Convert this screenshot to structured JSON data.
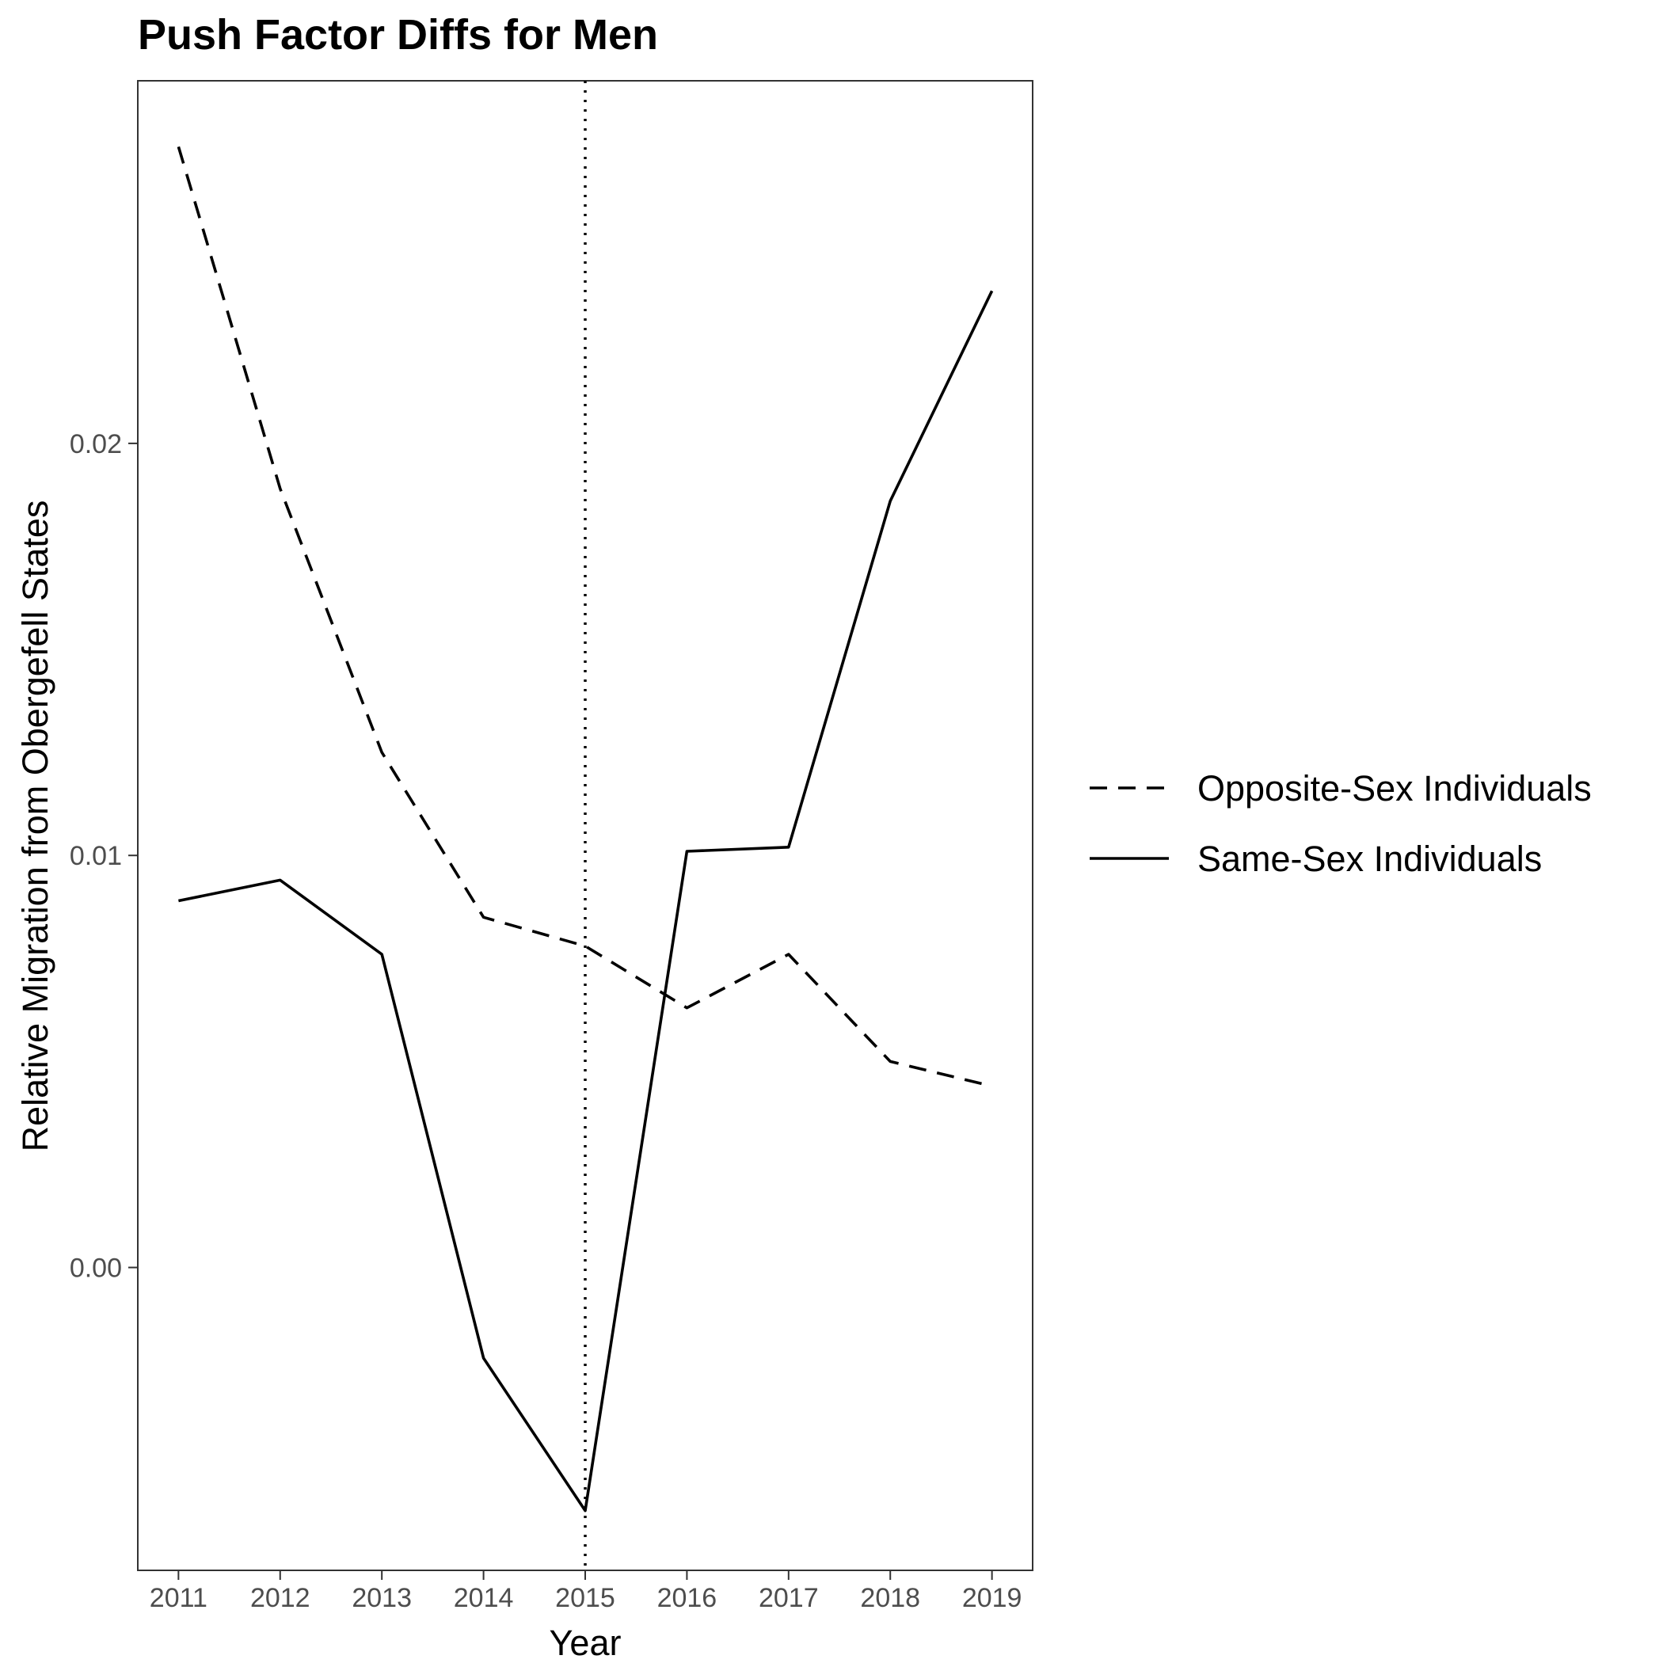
{
  "chart_data": {
    "type": "line",
    "title": "Push Factor Diffs for Men",
    "xlabel": "Year",
    "ylabel": "Relative Migration from Obergefell States",
    "x": [
      2011,
      2012,
      2013,
      2014,
      2015,
      2016,
      2017,
      2018,
      2019
    ],
    "x_tick_labels": [
      "2011",
      "2012",
      "2013",
      "2014",
      "2015",
      "2016",
      "2017",
      "2018",
      "2019"
    ],
    "y_ticks": [
      0.0,
      0.01,
      0.02
    ],
    "y_tick_labels": [
      "0.00",
      "0.01",
      "0.02"
    ],
    "xlim": [
      2010.6,
      2019.4
    ],
    "ylim": [
      -0.00735,
      0.0288
    ],
    "series": [
      {
        "name": "Opposite-Sex Individuals",
        "linestyle": "dashed",
        "color": "#000000",
        "values": [
          0.0272,
          0.0189,
          0.0125,
          0.0085,
          0.0078,
          0.0063,
          0.0076,
          0.005,
          0.0044
        ]
      },
      {
        "name": "Same-Sex Individuals",
        "linestyle": "solid",
        "color": "#000000",
        "values": [
          0.0089,
          0.0094,
          0.0076,
          -0.0022,
          -0.0059,
          0.0101,
          0.0102,
          0.0186,
          0.0237
        ]
      }
    ],
    "vline": {
      "x": 2015,
      "linestyle": "dotted"
    },
    "legend_position": "right",
    "grid": false
  }
}
